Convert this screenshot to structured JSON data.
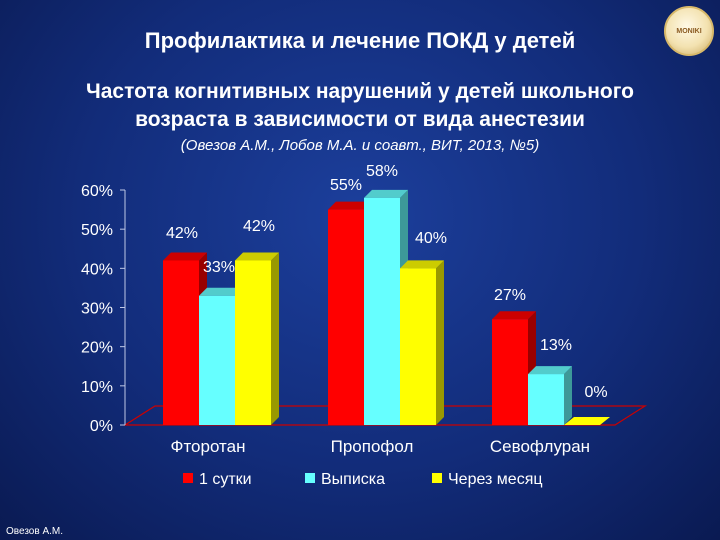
{
  "header": {
    "title": "Профилактика и лечение ПОКД у детей"
  },
  "logo": {
    "text": "MONIKI",
    "name": "institution-logo"
  },
  "subtitle": {
    "line1": "Частота когнитивных нарушений у детей школьного",
    "line2": "возраста в зависимости от вида анестезии"
  },
  "source": "(Овезов А.М., Лобов М.А. и соавт., ВИТ, 2013, №5)",
  "footer": {
    "author": "Овезов А.М."
  },
  "chart_data": {
    "type": "bar",
    "categories": [
      "Фторотан",
      "Пропофол",
      "Севофлуран"
    ],
    "series": [
      {
        "name": "1 сутки",
        "values": [
          42,
          55,
          27
        ],
        "labels": [
          "42%",
          "55%",
          "27%"
        ],
        "color": "#ff0000"
      },
      {
        "name": "Выписка",
        "values": [
          33,
          58,
          13
        ],
        "labels": [
          "33%",
          "58%",
          "13%"
        ],
        "color": "#66ffff"
      },
      {
        "name": "Через месяц",
        "values": [
          42,
          40,
          0
        ],
        "labels": [
          "42%",
          "40%",
          "0%"
        ],
        "color": "#ffff00"
      }
    ],
    "yticks": [
      "0%",
      "10%",
      "20%",
      "30%",
      "40%",
      "50%",
      "60%"
    ],
    "ylim": [
      0,
      60
    ],
    "grid": false,
    "legend_position": "bottom"
  }
}
